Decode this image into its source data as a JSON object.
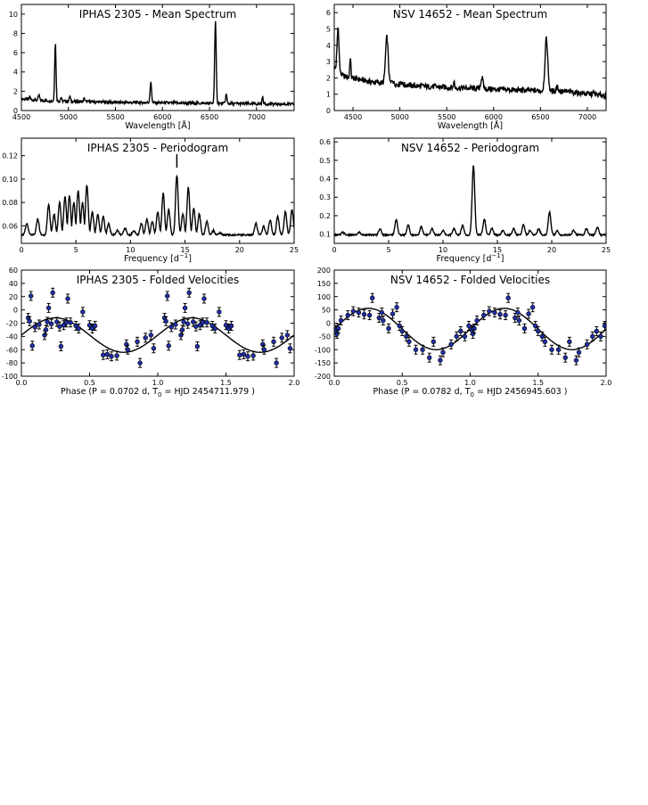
{
  "chart_data": [
    {
      "id": "iphas-spectrum",
      "type": "line",
      "title": "IPHAS 2305 - Mean Spectrum",
      "xlabel": "Wavelength [Å]",
      "ylabel": "",
      "xlim": [
        4500,
        7400
      ],
      "ylim": [
        0,
        11
      ],
      "xticks": [
        4500,
        5000,
        5500,
        6000,
        6500,
        7000
      ],
      "yticks": [
        0,
        2,
        4,
        6,
        8,
        10
      ],
      "continuum": [
        [
          4500,
          1.2
        ],
        [
          4800,
          1.0
        ],
        [
          5500,
          0.85
        ],
        [
          6500,
          0.75
        ],
        [
          7400,
          0.65
        ]
      ],
      "emission_lines": [
        {
          "center": 4861,
          "height": 7.0,
          "width": 7
        },
        {
          "center": 5876,
          "height": 2.9,
          "width": 8
        },
        {
          "center": 6563,
          "height": 9.2,
          "width": 8
        },
        {
          "center": 6678,
          "height": 1.7,
          "width": 7
        },
        {
          "center": 7065,
          "height": 1.4,
          "width": 7
        },
        {
          "center": 4686,
          "height": 1.6,
          "width": 7
        },
        {
          "center": 4922,
          "height": 1.4,
          "width": 6
        },
        {
          "center": 5015,
          "height": 1.5,
          "width": 6
        },
        {
          "center": 5169,
          "height": 1.3,
          "width": 6
        },
        {
          "center": 4590,
          "height": 1.5,
          "width": 5
        }
      ]
    },
    {
      "id": "nsv-spectrum",
      "type": "line",
      "title": "NSV 14652 - Mean Spectrum",
      "xlabel": "Wavelength [Å]",
      "ylabel": "",
      "xlim": [
        4300,
        7200
      ],
      "ylim": [
        0,
        6.5
      ],
      "xticks": [
        4500,
        5000,
        5500,
        6000,
        6500,
        7000
      ],
      "yticks": [
        0,
        1,
        2,
        3,
        4,
        5,
        6
      ],
      "continuum": [
        [
          4300,
          2.6
        ],
        [
          4400,
          2.1
        ],
        [
          4700,
          1.75
        ],
        [
          5200,
          1.5
        ],
        [
          6000,
          1.3
        ],
        [
          6800,
          1.15
        ],
        [
          7200,
          0.9
        ]
      ],
      "emission_lines": [
        {
          "center": 4340,
          "height": 5.1,
          "width": 10
        },
        {
          "center": 4471,
          "height": 3.3,
          "width": 6
        },
        {
          "center": 4861,
          "height": 4.5,
          "width": 14
        },
        {
          "center": 4922,
          "height": 1.9,
          "width": 8
        },
        {
          "center": 5015,
          "height": 1.8,
          "width": 8
        },
        {
          "center": 5577,
          "height": 1.9,
          "width": 4
        },
        {
          "center": 5876,
          "height": 2.0,
          "width": 12
        },
        {
          "center": 6563,
          "height": 4.4,
          "width": 15
        },
        {
          "center": 6678,
          "height": 1.5,
          "width": 10
        },
        {
          "center": 7065,
          "height": 1.1,
          "width": 10
        }
      ]
    },
    {
      "id": "iphas-periodogram",
      "type": "line",
      "title": "IPHAS 2305 - Periodogram",
      "xlabel": "Frequency [d$^{-1}$]",
      "xlabel_base": "Frequency [d",
      "xlabel_sup": "−1",
      "xlabel_end": "]",
      "xlim": [
        0,
        25
      ],
      "ylim": [
        0.045,
        0.135
      ],
      "xticks": [
        0,
        5,
        10,
        15,
        20,
        25
      ],
      "yticks": [
        0.06,
        0.08,
        0.1,
        0.12
      ],
      "ytick_labels": [
        "0.06",
        "0.08",
        "0.10",
        "0.12"
      ],
      "marker_frequency": 14.25,
      "peaks": [
        [
          0.5,
          0.062
        ],
        [
          1.5,
          0.066
        ],
        [
          2.5,
          0.078
        ],
        [
          3.0,
          0.07
        ],
        [
          3.5,
          0.08
        ],
        [
          4.0,
          0.085
        ],
        [
          4.4,
          0.086
        ],
        [
          4.8,
          0.08
        ],
        [
          5.2,
          0.09
        ],
        [
          5.6,
          0.08
        ],
        [
          6.0,
          0.095
        ],
        [
          6.5,
          0.072
        ],
        [
          7.0,
          0.07
        ],
        [
          7.5,
          0.068
        ],
        [
          8.0,
          0.062
        ],
        [
          8.8,
          0.056
        ],
        [
          9.5,
          0.058
        ],
        [
          10.3,
          0.056
        ],
        [
          11.0,
          0.062
        ],
        [
          11.5,
          0.066
        ],
        [
          12.0,
          0.064
        ],
        [
          12.5,
          0.072
        ],
        [
          13.0,
          0.088
        ],
        [
          13.5,
          0.074
        ],
        [
          14.25,
          0.103
        ],
        [
          14.8,
          0.07
        ],
        [
          15.3,
          0.093
        ],
        [
          15.8,
          0.075
        ],
        [
          16.3,
          0.07
        ],
        [
          17.0,
          0.064
        ],
        [
          17.6,
          0.056
        ],
        [
          18.2,
          0.054
        ],
        [
          21.5,
          0.062
        ],
        [
          22.2,
          0.06
        ],
        [
          22.8,
          0.065
        ],
        [
          23.5,
          0.068
        ],
        [
          24.2,
          0.072
        ],
        [
          24.8,
          0.074
        ]
      ]
    },
    {
      "id": "nsv-periodogram",
      "type": "line",
      "title": "NSV 14652 - Periodogram",
      "xlabel_base": "Frequency [d",
      "xlabel_sup": "−1",
      "xlabel_end": "]",
      "xlim": [
        0,
        25
      ],
      "ylim": [
        0.05,
        0.62
      ],
      "xticks": [
        0,
        5,
        10,
        15,
        20,
        25
      ],
      "yticks": [
        0.1,
        0.2,
        0.3,
        0.4,
        0.5,
        0.6
      ],
      "ytick_labels": [
        "0.1",
        "0.2",
        "0.3",
        "0.4",
        "0.5",
        "0.6"
      ],
      "peaks": [
        [
          0.8,
          0.11
        ],
        [
          2.3,
          0.11
        ],
        [
          4.2,
          0.13
        ],
        [
          5.7,
          0.18
        ],
        [
          6.8,
          0.15
        ],
        [
          8.0,
          0.14
        ],
        [
          9.0,
          0.13
        ],
        [
          10.0,
          0.12
        ],
        [
          11.0,
          0.13
        ],
        [
          11.8,
          0.15
        ],
        [
          12.8,
          0.47
        ],
        [
          13.8,
          0.18
        ],
        [
          14.5,
          0.13
        ],
        [
          15.5,
          0.12
        ],
        [
          16.5,
          0.13
        ],
        [
          17.4,
          0.15
        ],
        [
          18.0,
          0.12
        ],
        [
          18.8,
          0.13
        ],
        [
          19.8,
          0.22
        ],
        [
          20.5,
          0.12
        ],
        [
          22.0,
          0.12
        ],
        [
          23.2,
          0.13
        ],
        [
          24.2,
          0.14
        ]
      ]
    },
    {
      "id": "iphas-velocities",
      "type": "scatter",
      "title": "IPHAS 2305 - Folded Velocities",
      "xlabel": "Phase (P =  0.0702 d,  T",
      "xlabel_sub": "0",
      "xlabel_end": " = HJD 2454711.979 )",
      "xlim": [
        0,
        2
      ],
      "ylim": [
        -100,
        60
      ],
      "xticks": [
        0,
        0.5,
        1.0,
        1.5,
        2.0
      ],
      "xtick_labels": [
        "0.0",
        "0.5",
        "1.0",
        "1.5",
        "2.0"
      ],
      "yticks": [
        -100,
        -80,
        -60,
        -40,
        -20,
        0,
        20,
        40,
        60
      ],
      "fit": {
        "gamma": -38,
        "amplitude": 26,
        "phase_of_max": 0.25
      },
      "points": [
        [
          0.05,
          -12
        ],
        [
          0.06,
          -17
        ],
        [
          0.07,
          21
        ],
        [
          0.08,
          -54
        ],
        [
          0.1,
          -26
        ],
        [
          0.13,
          -22
        ],
        [
          0.17,
          -38
        ],
        [
          0.18,
          -30
        ],
        [
          0.19,
          -18
        ],
        [
          0.2,
          3
        ],
        [
          0.22,
          -21
        ],
        [
          0.23,
          26
        ],
        [
          0.26,
          -18
        ],
        [
          0.28,
          -25
        ],
        [
          0.29,
          -55
        ],
        [
          0.31,
          -23
        ],
        [
          0.33,
          -19
        ],
        [
          0.34,
          17
        ],
        [
          0.36,
          -19
        ],
        [
          0.4,
          -24
        ],
        [
          0.42,
          -28
        ],
        [
          0.45,
          -3
        ],
        [
          0.5,
          -23
        ],
        [
          0.52,
          -28
        ],
        [
          0.54,
          -24
        ],
        [
          0.6,
          -68
        ],
        [
          0.63,
          -67
        ],
        [
          0.66,
          -70
        ],
        [
          0.7,
          -69
        ],
        [
          0.77,
          -52
        ],
        [
          0.78,
          -60
        ],
        [
          0.85,
          -48
        ],
        [
          0.87,
          -80
        ],
        [
          0.91,
          -42
        ],
        [
          0.95,
          -38
        ],
        [
          0.97,
          -58
        ]
      ]
    },
    {
      "id": "nsv-velocities",
      "type": "scatter",
      "title": "NSV 14652 - Folded Velocities",
      "xlabel": "Phase (P =  0.0782 d,  T",
      "xlabel_sub": "0",
      "xlabel_end": " = HJD 2456945.603 )",
      "xlim": [
        0,
        2
      ],
      "ylim": [
        -200,
        200
      ],
      "xticks": [
        0,
        0.5,
        1.0,
        1.5,
        2.0
      ],
      "xtick_labels": [
        "0.0",
        "0.5",
        "1.0",
        "1.5",
        "2.0"
      ],
      "yticks": [
        -200,
        -150,
        -100,
        -50,
        0,
        50,
        100,
        150,
        200
      ],
      "fit": {
        "gamma": -22,
        "amplitude": 78,
        "phase_of_max": 0.25
      },
      "points": [
        [
          0.01,
          -25
        ],
        [
          0.02,
          -40
        ],
        [
          0.03,
          -20
        ],
        [
          0.05,
          10
        ],
        [
          0.1,
          30
        ],
        [
          0.14,
          45
        ],
        [
          0.18,
          40
        ],
        [
          0.22,
          33
        ],
        [
          0.26,
          30
        ],
        [
          0.28,
          95
        ],
        [
          0.33,
          20
        ],
        [
          0.35,
          40
        ],
        [
          0.36,
          10
        ],
        [
          0.4,
          -20
        ],
        [
          0.43,
          35
        ],
        [
          0.46,
          60
        ],
        [
          0.48,
          -10
        ],
        [
          0.5,
          -30
        ],
        [
          0.53,
          -50
        ],
        [
          0.55,
          -70
        ],
        [
          0.6,
          -100
        ],
        [
          0.65,
          -100
        ],
        [
          0.7,
          -130
        ],
        [
          0.73,
          -70
        ],
        [
          0.78,
          -140
        ],
        [
          0.8,
          -110
        ],
        [
          0.86,
          -80
        ],
        [
          0.9,
          -50
        ],
        [
          0.93,
          -30
        ],
        [
          0.96,
          -50
        ],
        [
          0.99,
          -10
        ]
      ]
    }
  ]
}
